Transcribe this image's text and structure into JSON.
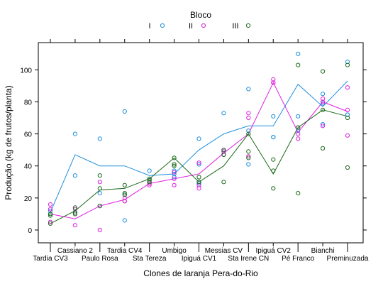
{
  "chart_data": {
    "type": "scatter",
    "title": "",
    "legend_title": "Bloco",
    "legend_placement": "top",
    "xlabel": "Clones de laranja Pera-do-Rio",
    "ylabel": "Produção (kg de frutos/planta)",
    "ylim": [
      -8,
      117
    ],
    "yticks": [
      0,
      20,
      40,
      60,
      80,
      100
    ],
    "grid": false,
    "categories": [
      "Tardia CV3",
      "Cassiano 2",
      "Paulo Rosa",
      "Tardia CV4",
      "Sta Tereza",
      "Umbigo",
      "Ipiguá CV1",
      "Messias CV",
      "Sta Irene CN",
      "Ipiguá CV2",
      "Pé Franco",
      "Bianchi",
      "Preminuzada"
    ],
    "series": [
      {
        "name": "I",
        "color": "#1e90dc",
        "points": [
          [
            [
              12,
              10,
              10
            ]
          ],
          [
            [
              60,
              34,
              11
            ]
          ],
          [
            [
              57,
              23,
              15
            ]
          ],
          [
            [
              74,
              22,
              6
            ]
          ],
          [
            [
              37,
              32,
              30
            ]
          ],
          [
            [
              37,
              35,
              33
            ]
          ],
          [
            [
              57,
              41,
              29
            ]
          ],
          [
            [
              73,
              47,
              49
            ]
          ],
          [
            [
              88,
              41,
              62
            ]
          ],
          [
            [
              71,
              58,
              58
            ]
          ],
          [
            [
              110,
              71,
              62
            ]
          ],
          [
            [
              85,
              79,
              66
            ]
          ],
          [
            [
              105,
              72,
              72
            ]
          ]
        ],
        "mean_line": [
          11,
          47,
          40,
          40,
          34,
          35,
          50,
          60,
          65,
          65,
          91,
          77,
          93
        ]
      },
      {
        "name": "II",
        "color": "#e020e0",
        "points": [
          [
            [
              16,
              13,
              5
            ]
          ],
          [
            [
              13,
              10,
              3
            ]
          ],
          [
            [
              30,
              15,
              0
            ]
          ],
          [
            [
              20,
              18,
              18
            ]
          ],
          [
            [
              30,
              29,
              28
            ]
          ],
          [
            [
              36,
              32,
              28
            ]
          ],
          [
            [
              42,
              28,
              26
            ]
          ],
          [
            [
              50,
              49,
              47
            ]
          ],
          [
            [
              73,
              70,
              46
            ]
          ],
          [
            [
              94,
              92,
              92
            ]
          ],
          [
            [
              64,
              60,
              57
            ]
          ],
          [
            [
              82,
              80,
              65
            ]
          ],
          [
            [
              89,
              75,
              59
            ]
          ]
        ],
        "mean_line": [
          10,
          7,
          15,
          19,
          29,
          32,
          35,
          48,
          60,
          92,
          61,
          80,
          74
        ]
      },
      {
        "name": "III",
        "color": "#1a6a1a",
        "points": [
          [
            [
              10,
              9,
              4
            ]
          ],
          [
            [
              14,
              11,
              10
            ]
          ],
          [
            [
              34,
              26,
              15
            ]
          ],
          [
            [
              28,
              23,
              22
            ]
          ],
          [
            [
              32,
              31,
              30
            ]
          ],
          [
            [
              45,
              41,
              40
            ]
          ],
          [
            [
              33,
              30,
              30
            ]
          ],
          [
            [
              50,
              47,
              30
            ]
          ],
          [
            [
              60,
              49,
              45
            ]
          ],
          [
            [
              44,
              37,
              26
            ]
          ],
          [
            [
              103,
              64,
              23
            ]
          ],
          [
            [
              99,
              51,
              75
            ]
          ],
          [
            [
              103,
              70,
              39
            ]
          ]
        ],
        "mean_line": [
          4,
          12,
          25,
          26,
          32,
          45,
          30,
          40,
          60,
          35,
          64,
          75,
          71
        ]
      }
    ]
  }
}
